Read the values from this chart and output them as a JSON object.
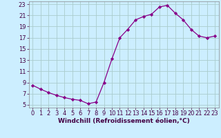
{
  "x": [
    0,
    1,
    2,
    3,
    4,
    5,
    6,
    7,
    8,
    9,
    10,
    11,
    12,
    13,
    14,
    15,
    16,
    17,
    18,
    19,
    20,
    21,
    22,
    23
  ],
  "y": [
    8.5,
    7.8,
    7.2,
    6.7,
    6.3,
    6.0,
    5.8,
    5.2,
    5.5,
    9.0,
    13.2,
    17.0,
    18.5,
    20.2,
    20.8,
    21.2,
    22.5,
    22.8,
    21.4,
    20.2,
    18.5,
    17.3,
    17.0,
    17.3
  ],
  "line_color": "#880088",
  "marker": "D",
  "marker_size": 2.2,
  "bg_color": "#cceeff",
  "grid_color": "#aacccc",
  "xlabel": "Windchill (Refroidissement éolien,°C)",
  "xlabel_fontsize": 6.5,
  "xlim": [
    -0.5,
    23.5
  ],
  "ylim": [
    4.5,
    23.5
  ],
  "yticks": [
    5,
    7,
    9,
    11,
    13,
    15,
    17,
    19,
    21,
    23
  ],
  "xticks": [
    0,
    1,
    2,
    3,
    4,
    5,
    6,
    7,
    8,
    9,
    10,
    11,
    12,
    13,
    14,
    15,
    16,
    17,
    18,
    19,
    20,
    21,
    22,
    23
  ],
  "tick_fontsize": 6.0
}
